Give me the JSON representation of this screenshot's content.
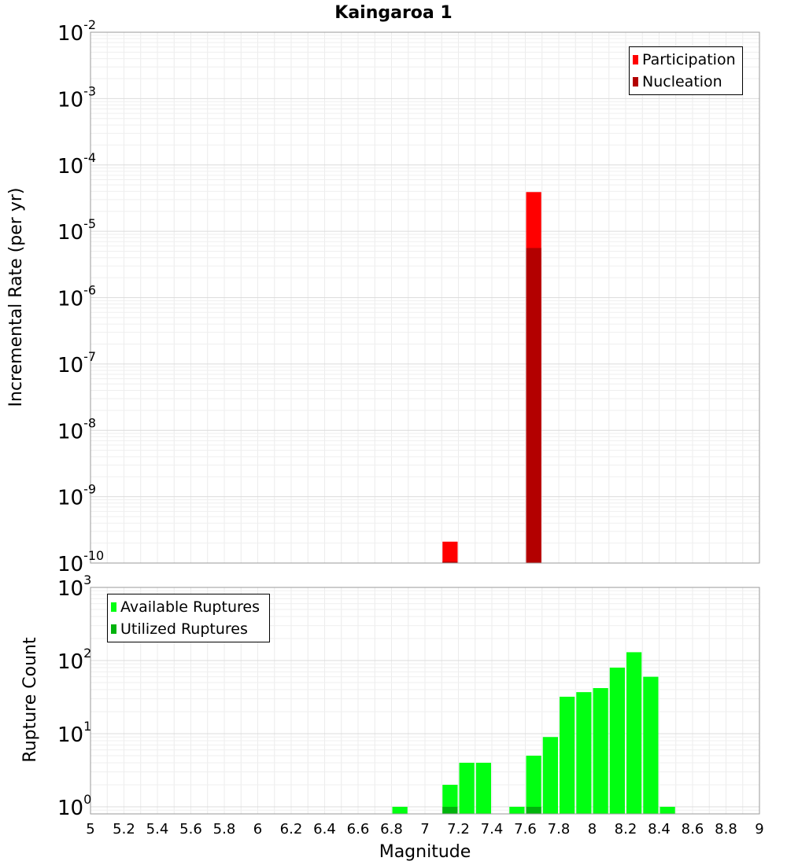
{
  "chart_data": [
    {
      "type": "bar",
      "title": "Kaingaroa 1",
      "xlabel": "",
      "ylabel": "Incremental Rate (per yr)",
      "yscale": "log",
      "ylim": [
        1e-10,
        0.01
      ],
      "xlim": [
        5,
        9
      ],
      "grid": true,
      "legend_position": "top-right",
      "series": [
        {
          "name": "Participation",
          "color": "#ff0000",
          "points": [
            {
              "x": 7.15,
              "y": 2.1e-10
            },
            {
              "x": 7.65,
              "y": 3.9e-05
            }
          ]
        },
        {
          "name": "Nucleation",
          "color": "#b30000",
          "points": [
            {
              "x": 7.15,
              "y": 1.05e-10
            },
            {
              "x": 7.65,
              "y": 5.6e-06
            }
          ]
        }
      ],
      "y_tick_labels": [
        {
          "exp": "-10",
          "value": 1e-10
        },
        {
          "exp": "-9",
          "value": 1e-09
        },
        {
          "exp": "-8",
          "value": 1e-08
        },
        {
          "exp": "-7",
          "value": 1e-07
        },
        {
          "exp": "-6",
          "value": 1e-06
        },
        {
          "exp": "-5",
          "value": 1e-05
        },
        {
          "exp": "-4",
          "value": 0.0001
        },
        {
          "exp": "-3",
          "value": 0.001
        },
        {
          "exp": "-2",
          "value": 0.01
        }
      ]
    },
    {
      "type": "bar",
      "title": "",
      "xlabel": "Magnitude",
      "ylabel": "Rupture Count",
      "yscale": "log",
      "ylim": [
        0.8,
        1000
      ],
      "xlim": [
        5,
        9
      ],
      "grid": true,
      "legend_position": "top-left",
      "series": [
        {
          "name": "Available Ruptures",
          "color": "#00ff11",
          "points": [
            {
              "x": 6.85,
              "y": 1
            },
            {
              "x": 7.15,
              "y": 2
            },
            {
              "x": 7.25,
              "y": 4
            },
            {
              "x": 7.35,
              "y": 4
            },
            {
              "x": 7.55,
              "y": 1
            },
            {
              "x": 7.65,
              "y": 5
            },
            {
              "x": 7.75,
              "y": 9
            },
            {
              "x": 7.85,
              "y": 32
            },
            {
              "x": 7.95,
              "y": 37
            },
            {
              "x": 8.05,
              "y": 42
            },
            {
              "x": 8.15,
              "y": 80
            },
            {
              "x": 8.25,
              "y": 130
            },
            {
              "x": 8.35,
              "y": 60
            },
            {
              "x": 8.45,
              "y": 1
            }
          ]
        },
        {
          "name": "Utilized Ruptures",
          "color": "#00b30c",
          "points": [
            {
              "x": 7.15,
              "y": 1
            },
            {
              "x": 7.65,
              "y": 1
            }
          ]
        }
      ],
      "y_tick_labels": [
        {
          "exp": "0",
          "value": 1
        },
        {
          "exp": "1",
          "value": 10
        },
        {
          "exp": "2",
          "value": 100
        },
        {
          "exp": "3",
          "value": 1000
        }
      ],
      "x_tick_labels": [
        "5",
        "5.2",
        "5.4",
        "5.6",
        "5.8",
        "6",
        "6.2",
        "6.4",
        "6.6",
        "6.8",
        "7",
        "7.2",
        "7.4",
        "7.6",
        "7.8",
        "8",
        "8.2",
        "8.4",
        "8.6",
        "8.8",
        "9"
      ]
    }
  ]
}
